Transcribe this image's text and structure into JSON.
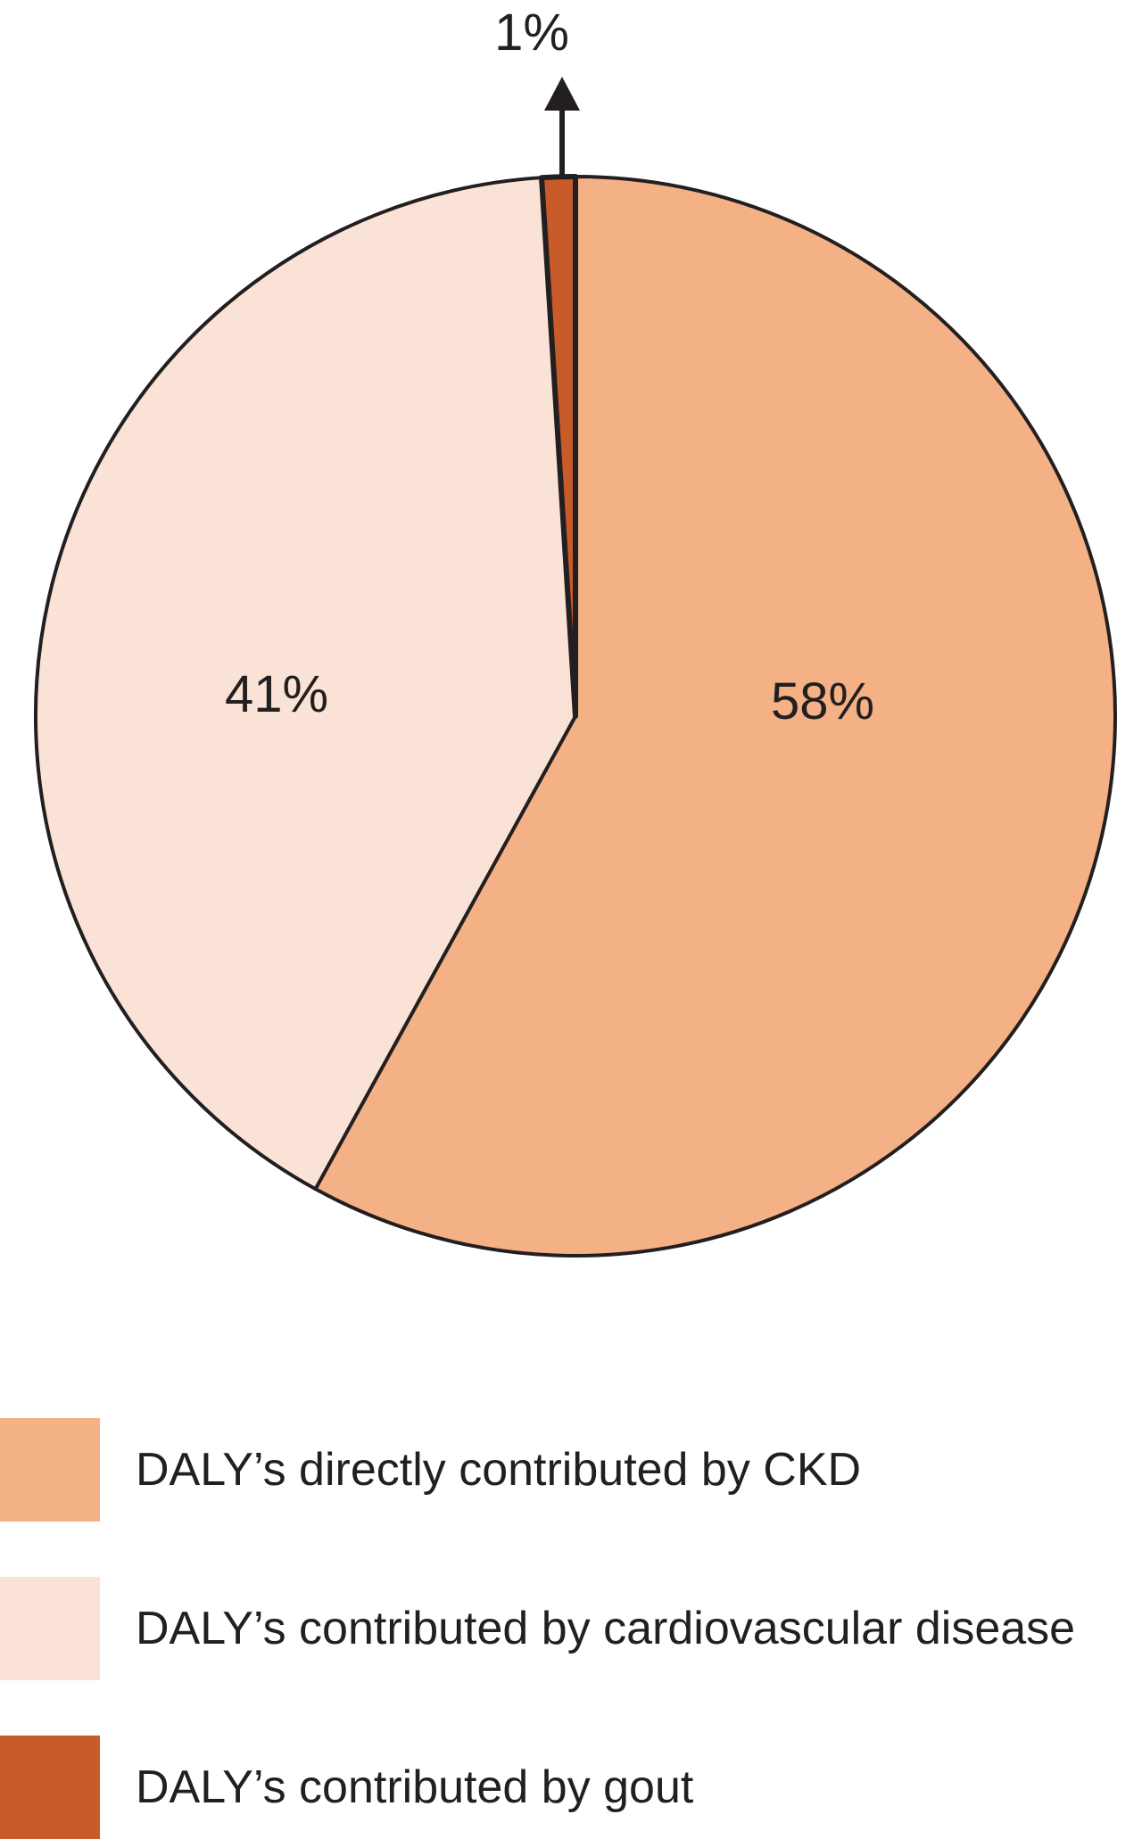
{
  "chart_data": {
    "type": "pie",
    "title": "",
    "slices": [
      {
        "name": "DALY’s directly contributed by CKD",
        "value": 58,
        "label": "58%",
        "color": "#f5b186"
      },
      {
        "name": "DALY’s contributed by cardiovascular disease",
        "value": 41,
        "label": "41%",
        "color": "#fae3d6"
      },
      {
        "name": "DALY’s contributed by gout",
        "value": 1,
        "label": "1%",
        "color": "#c75b29"
      }
    ],
    "start_angle": "12 o'clock",
    "direction": "clockwise",
    "legend": "bottom-left",
    "outline_color": "#231f20"
  }
}
